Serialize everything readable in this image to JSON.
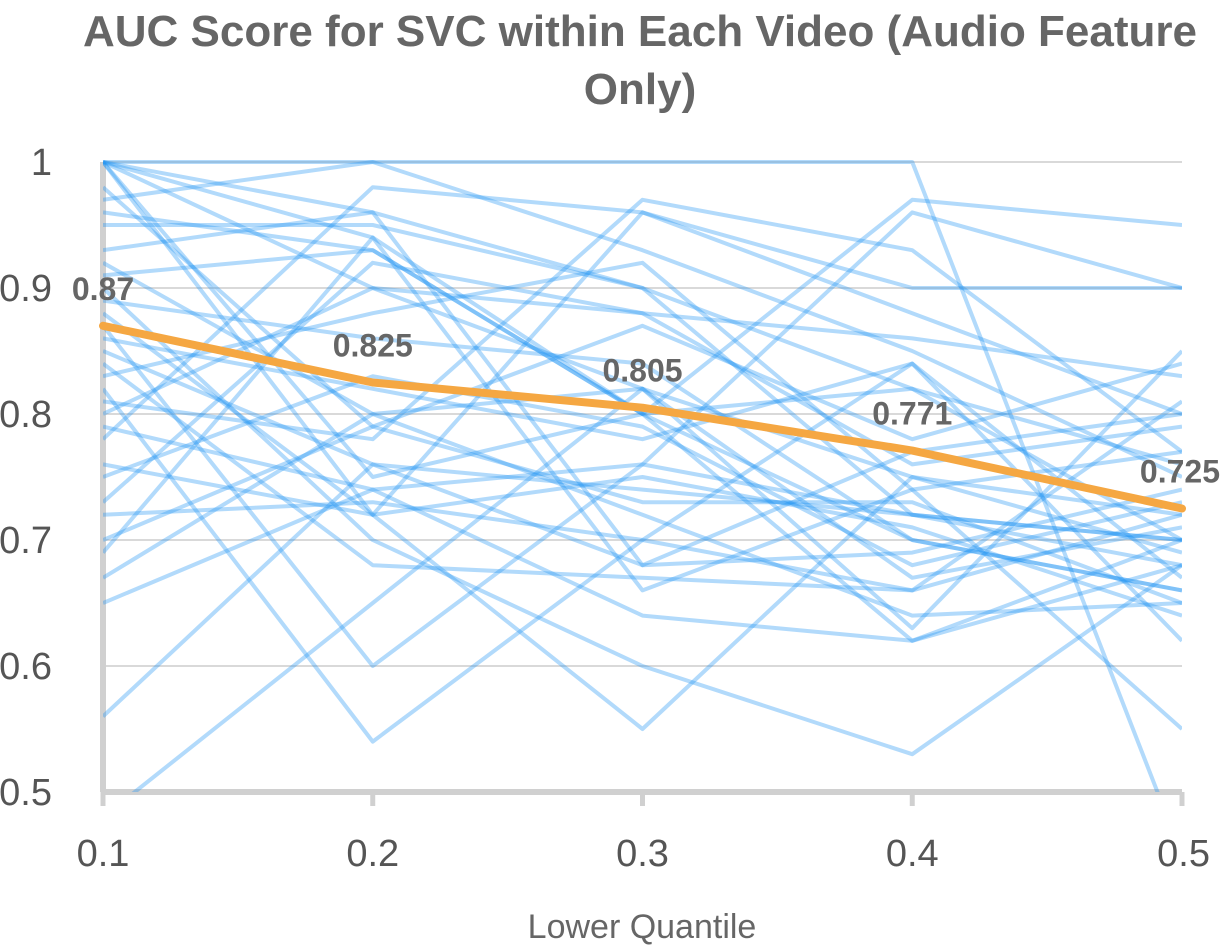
{
  "chart_data": {
    "type": "line",
    "title": "AUC Score for SVC within Each Video (Audio Feature Only)",
    "title_lines": [
      "AUC Score for SVC within Each Video (Audio Feature",
      "Only)"
    ],
    "xlabel": "Lower Quantile",
    "ylabel": "",
    "x": [
      0.1,
      0.2,
      0.3,
      0.4,
      0.5
    ],
    "x_tick_labels": [
      "0.1",
      "0.2",
      "0.3",
      "0.4",
      "0.5"
    ],
    "ylim": [
      0.5,
      1.0
    ],
    "y_ticks": [
      0.5,
      0.6,
      0.7,
      0.8,
      0.9,
      1.0
    ],
    "y_tick_labels": [
      "0.5",
      "0.6",
      "0.7",
      "0.8",
      "0.9",
      "1"
    ],
    "grid": true,
    "legend": "none",
    "colors": {
      "videos": "#2196F3",
      "mean": "#F5A742",
      "grid": "#d9d9d9",
      "axis": "#d0d0d0"
    },
    "mean_series": {
      "values": [
        0.87,
        0.825,
        0.805,
        0.771,
        0.725
      ],
      "labels": [
        "0.87",
        "0.825",
        "0.805",
        "0.771",
        "0.725"
      ]
    },
    "video_series": [
      [
        1.0,
        1.0,
        1.0,
        1.0,
        0.45
      ],
      [
        1.0,
        0.96,
        0.9,
        0.82,
        0.7
      ],
      [
        1.0,
        0.94,
        0.8,
        0.7,
        0.66
      ],
      [
        1.0,
        0.75,
        0.8,
        0.62,
        0.68
      ],
      [
        1.0,
        0.72,
        0.55,
        0.75,
        0.72
      ],
      [
        1.0,
        0.9,
        0.88,
        0.86,
        0.83
      ],
      [
        0.97,
        1.0,
        0.93,
        0.85,
        0.75
      ],
      [
        0.95,
        0.95,
        0.9,
        0.72,
        0.68
      ],
      [
        0.93,
        0.96,
        0.68,
        0.69,
        0.74
      ],
      [
        0.92,
        0.8,
        0.72,
        0.64,
        0.65
      ],
      [
        0.91,
        0.93,
        0.8,
        0.82,
        0.76
      ],
      [
        0.9,
        0.7,
        0.6,
        0.53,
        0.68
      ],
      [
        0.89,
        0.86,
        0.84,
        0.7,
        0.66
      ],
      [
        0.88,
        0.72,
        0.96,
        0.88,
        0.8
      ],
      [
        0.87,
        0.6,
        0.76,
        0.96,
        0.9
      ],
      [
        0.86,
        0.82,
        0.78,
        0.84,
        0.62
      ],
      [
        0.85,
        0.76,
        0.74,
        0.72,
        0.7
      ],
      [
        0.84,
        0.68,
        0.67,
        0.66,
        0.72
      ],
      [
        0.83,
        0.88,
        0.92,
        0.74,
        0.55
      ],
      [
        0.82,
        0.54,
        0.7,
        0.84,
        0.67
      ],
      [
        0.81,
        0.78,
        0.97,
        0.93,
        0.77
      ],
      [
        0.8,
        0.9,
        0.82,
        0.63,
        0.85
      ],
      [
        0.79,
        0.74,
        0.64,
        0.62,
        0.7
      ],
      [
        0.78,
        0.98,
        0.96,
        0.9,
        0.9
      ],
      [
        0.76,
        0.72,
        0.75,
        0.71,
        0.64
      ],
      [
        0.75,
        0.83,
        0.79,
        0.68,
        0.73
      ],
      [
        0.73,
        0.92,
        0.88,
        0.76,
        0.79
      ],
      [
        0.72,
        0.73,
        0.7,
        0.66,
        0.81
      ],
      [
        0.7,
        0.79,
        0.87,
        0.78,
        0.84
      ],
      [
        0.69,
        0.94,
        0.66,
        0.74,
        0.77
      ],
      [
        0.67,
        0.8,
        0.82,
        0.67,
        0.71
      ],
      [
        0.65,
        0.74,
        0.76,
        0.72,
        0.7
      ],
      [
        0.56,
        0.76,
        0.68,
        0.77,
        0.8
      ],
      [
        0.48,
        0.65,
        0.82,
        0.75,
        0.69
      ],
      [
        0.96,
        0.93,
        0.8,
        0.97,
        0.95
      ],
      [
        0.98,
        0.79,
        0.73,
        0.73,
        0.65
      ]
    ]
  }
}
